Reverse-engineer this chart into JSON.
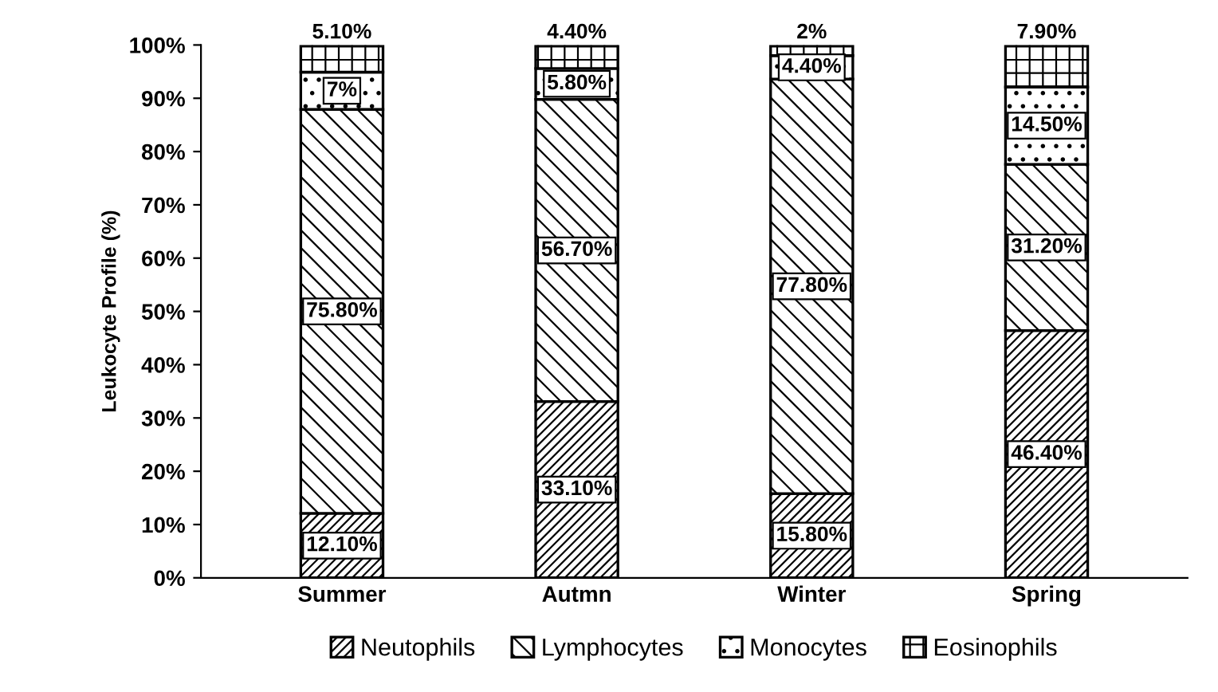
{
  "chart_data": {
    "type": "bar",
    "stacked": true,
    "ylabel": "Leukocyte Profile (%)",
    "categories": [
      "Summer",
      "Autmn",
      "Winter",
      "Spring"
    ],
    "series": [
      {
        "name": "Neutophils",
        "color": "#000000",
        "values": [
          12.1,
          33.1,
          15.8,
          46.4
        ],
        "value_labels": [
          "12.10%",
          "33.10%",
          "15.80%",
          "46.40%"
        ]
      },
      {
        "name": "Lymphocytes",
        "color": "#000000",
        "values": [
          75.8,
          56.7,
          77.8,
          31.2
        ],
        "value_labels": [
          "75.80%",
          "56.70%",
          "77.80%",
          "31.20%"
        ]
      },
      {
        "name": "Monocytes",
        "color": "#000000",
        "values": [
          7,
          5.8,
          4.4,
          14.5
        ],
        "value_labels": [
          "7%",
          "5.80%",
          "4.40%",
          "14.50%"
        ]
      },
      {
        "name": "Eosinophils",
        "color": "#000000",
        "values": [
          5.1,
          4.4,
          2,
          7.9
        ],
        "value_labels": [
          "5.10%",
          "4.40%",
          "2%",
          "7.90%"
        ]
      }
    ],
    "ylim": [
      0,
      100
    ],
    "yticks": [
      {
        "value": 0,
        "label": "0%"
      },
      {
        "value": 10,
        "label": "10%"
      },
      {
        "value": 20,
        "label": "20%"
      },
      {
        "value": 30,
        "label": "30%"
      },
      {
        "value": 40,
        "label": "40%"
      },
      {
        "value": 50,
        "label": "50%"
      },
      {
        "value": 60,
        "label": "60%"
      },
      {
        "value": 70,
        "label": "70%"
      },
      {
        "value": 80,
        "label": "80%"
      },
      {
        "value": 90,
        "label": "90%"
      },
      {
        "value": 100,
        "label": "100%"
      }
    ],
    "legend": "bottom",
    "grid": false
  }
}
